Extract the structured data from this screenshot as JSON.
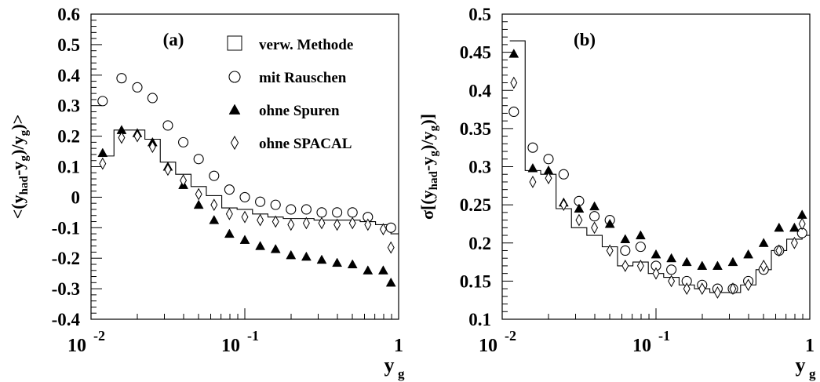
{
  "chart_data": [
    {
      "panel_label": "(a)",
      "type": "scatter",
      "xscale": "log",
      "xlim": [
        0.01,
        1
      ],
      "ylim": [
        -0.4,
        0.6
      ],
      "xticks": [
        {
          "base": "10",
          "exp": "-2"
        },
        {
          "base": "10",
          "exp": "-1"
        },
        {
          "base": "1",
          "exp": ""
        }
      ],
      "yticks": [
        "-0.4",
        "-0.3",
        "-0.2",
        "-0.1",
        "0",
        "0.1",
        "0.2",
        "0.3",
        "0.4",
        "0.5",
        "0.6"
      ],
      "xlabel": {
        "main": "y",
        "sub": "g"
      },
      "ylabel": {
        "parts": [
          [
            "<(y",
            ""
          ],
          [
            "had",
            "sub"
          ],
          [
            "-y",
            ""
          ],
          [
            "g",
            "sub"
          ],
          [
            ")/y",
            ""
          ],
          [
            "g",
            "sub"
          ],
          [
            ")>",
            ""
          ]
        ]
      },
      "legend": {
        "position": "top-right",
        "entries": [
          {
            "marker": "open-square",
            "label": "verw. Methode"
          },
          {
            "marker": "open-circle",
            "label": "mit Rauschen"
          },
          {
            "marker": "filled-triangle",
            "label": "ohne Spuren"
          },
          {
            "marker": "open-diamond",
            "label": "ohne SPACAL"
          }
        ]
      },
      "series": [
        {
          "name": "verw. Methode",
          "style": "histogram",
          "edges": [
            0.0112,
            0.0141,
            0.0178,
            0.0224,
            0.0282,
            0.0355,
            0.0447,
            0.0562,
            0.0708,
            0.0891,
            0.1122,
            0.1413,
            0.1778,
            0.2239,
            0.2818,
            0.3548,
            0.4467,
            0.5623,
            0.7079,
            0.8913,
            1.0
          ],
          "values": [
            0.135,
            0.22,
            0.22,
            0.19,
            0.115,
            0.075,
            0.035,
            0.005,
            -0.035,
            -0.04,
            -0.055,
            -0.065,
            -0.07,
            -0.07,
            -0.075,
            -0.075,
            -0.075,
            -0.08,
            -0.09,
            -0.12
          ]
        },
        {
          "name": "mit Rauschen",
          "marker": "open-circle",
          "x": [
            0.0119,
            0.0158,
            0.02,
            0.0251,
            0.0316,
            0.0398,
            0.0501,
            0.0631,
            0.0794,
            0.1,
            0.1259,
            0.1585,
            0.1995,
            0.2512,
            0.3162,
            0.3981,
            0.5012,
            0.631,
            0.8913
          ],
          "y": [
            0.315,
            0.39,
            0.36,
            0.325,
            0.235,
            0.18,
            0.125,
            0.07,
            0.025,
            0.0,
            -0.015,
            -0.025,
            -0.04,
            -0.04,
            -0.05,
            -0.05,
            -0.05,
            -0.065,
            -0.1
          ]
        },
        {
          "name": "ohne Spuren",
          "marker": "filled-triangle",
          "x": [
            0.0119,
            0.0158,
            0.02,
            0.0251,
            0.0316,
            0.0398,
            0.0501,
            0.0631,
            0.0794,
            0.1,
            0.1259,
            0.1585,
            0.1995,
            0.2512,
            0.3162,
            0.3981,
            0.5012,
            0.631,
            0.7943,
            0.8913
          ],
          "y": [
            0.145,
            0.22,
            0.21,
            0.18,
            0.1,
            0.04,
            -0.025,
            -0.075,
            -0.12,
            -0.14,
            -0.16,
            -0.17,
            -0.19,
            -0.195,
            -0.205,
            -0.215,
            -0.22,
            -0.24,
            -0.24,
            -0.28
          ]
        },
        {
          "name": "ohne SPACAL",
          "marker": "open-diamond",
          "x": [
            0.0119,
            0.0158,
            0.02,
            0.0251,
            0.0316,
            0.0398,
            0.0501,
            0.0631,
            0.0794,
            0.1,
            0.1259,
            0.1585,
            0.1995,
            0.2512,
            0.3162,
            0.3981,
            0.5012,
            0.631,
            0.7943,
            0.8913
          ],
          "y": [
            0.11,
            0.195,
            0.2,
            0.165,
            0.09,
            0.055,
            0.01,
            -0.025,
            -0.055,
            -0.065,
            -0.075,
            -0.08,
            -0.09,
            -0.085,
            -0.085,
            -0.09,
            -0.085,
            -0.09,
            -0.105,
            -0.165
          ]
        }
      ]
    },
    {
      "panel_label": "(b)",
      "type": "scatter",
      "xscale": "log",
      "xlim": [
        0.01,
        1
      ],
      "ylim": [
        0.1,
        0.5
      ],
      "xticks": [
        {
          "base": "10",
          "exp": "-2"
        },
        {
          "base": "10",
          "exp": "-1"
        },
        {
          "base": "1",
          "exp": ""
        }
      ],
      "yticks": [
        "0.1",
        "0.15",
        "0.2",
        "0.25",
        "0.3",
        "0.35",
        "0.4",
        "0.45",
        "0.5"
      ],
      "xlabel": {
        "main": "y",
        "sub": "g"
      },
      "ylabel": {
        "parts": [
          [
            "σ[(y",
            ""
          ],
          [
            "had",
            "sub"
          ],
          [
            "-y",
            ""
          ],
          [
            "g",
            "sub"
          ],
          [
            ")/y",
            ""
          ],
          [
            "g",
            "sub"
          ],
          [
            ")]",
            ""
          ]
        ]
      },
      "series": [
        {
          "name": "verw. Methode",
          "style": "histogram",
          "edges": [
            0.0112,
            0.0141,
            0.0178,
            0.0224,
            0.0282,
            0.0355,
            0.0447,
            0.0562,
            0.0708,
            0.0891,
            0.1122,
            0.1413,
            0.1778,
            0.2239,
            0.2818,
            0.3548,
            0.4467,
            0.5623,
            0.7079,
            0.8913,
            1.0
          ],
          "values": [
            0.465,
            0.295,
            0.29,
            0.245,
            0.22,
            0.21,
            0.195,
            0.17,
            0.175,
            0.16,
            0.155,
            0.145,
            0.14,
            0.135,
            0.135,
            0.145,
            0.165,
            0.19,
            0.205,
            0.21
          ]
        },
        {
          "name": "mit Rauschen",
          "marker": "open-circle",
          "x": [
            0.0119,
            0.0158,
            0.02,
            0.0251,
            0.0316,
            0.0398,
            0.0501,
            0.0631,
            0.0794,
            0.1,
            0.1259,
            0.1585,
            0.1995,
            0.2512,
            0.3162,
            0.3981,
            0.5012,
            0.631,
            0.8913
          ],
          "y": [
            0.372,
            0.325,
            0.31,
            0.29,
            0.255,
            0.235,
            0.23,
            0.19,
            0.195,
            0.17,
            0.165,
            0.15,
            0.145,
            0.14,
            0.14,
            0.15,
            0.165,
            0.19,
            0.213
          ]
        },
        {
          "name": "ohne Spuren",
          "marker": "filled-triangle",
          "x": [
            0.0119,
            0.0158,
            0.02,
            0.0251,
            0.0316,
            0.0398,
            0.0501,
            0.0631,
            0.0794,
            0.1,
            0.1259,
            0.1585,
            0.1995,
            0.2512,
            0.3162,
            0.3981,
            0.5012,
            0.631,
            0.7943,
            0.8913
          ],
          "y": [
            0.448,
            0.298,
            0.295,
            0.253,
            0.245,
            0.248,
            0.225,
            0.205,
            0.21,
            0.185,
            0.18,
            0.175,
            0.17,
            0.17,
            0.175,
            0.185,
            0.2,
            0.22,
            0.22,
            0.237
          ]
        },
        {
          "name": "ohne SPACAL",
          "marker": "open-diamond",
          "x": [
            0.0119,
            0.0158,
            0.02,
            0.0251,
            0.0316,
            0.0398,
            0.0501,
            0.0631,
            0.0794,
            0.1,
            0.1259,
            0.1585,
            0.1995,
            0.2512,
            0.3162,
            0.3981,
            0.5012,
            0.631,
            0.7943,
            0.8913
          ],
          "y": [
            0.41,
            0.28,
            0.285,
            0.25,
            0.23,
            0.22,
            0.19,
            0.17,
            0.17,
            0.16,
            0.15,
            0.14,
            0.14,
            0.135,
            0.14,
            0.145,
            0.17,
            0.19,
            0.2,
            0.225
          ]
        }
      ]
    }
  ]
}
